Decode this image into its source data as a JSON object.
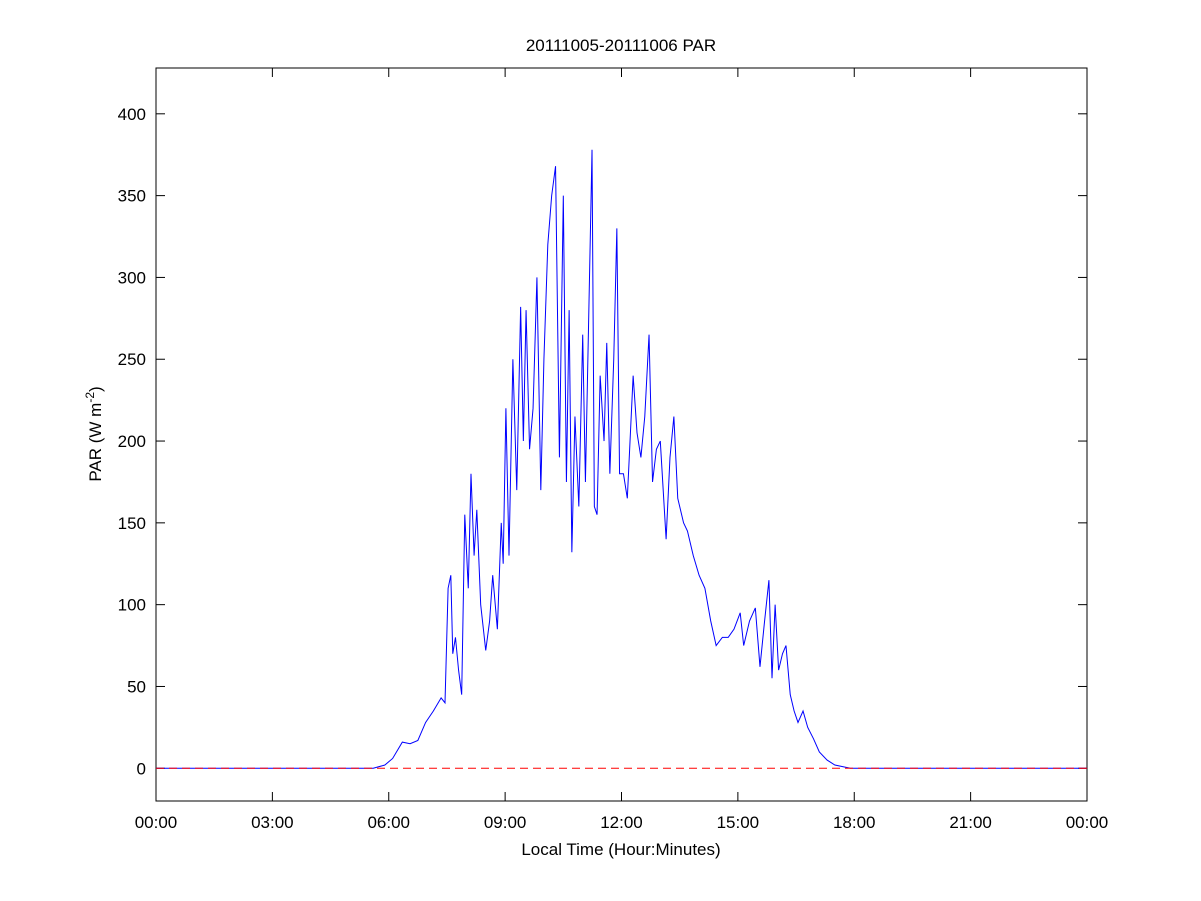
{
  "chart_data": {
    "type": "line",
    "title": "20111005-20111006 PAR",
    "x_label": "Local Time (Hour:Minutes)",
    "y_label": {
      "text": "PAR (W m",
      "superscript": "-2",
      "close": ")"
    },
    "x": [
      0,
      5.6,
      5.9,
      6.1,
      6.35,
      6.55,
      6.75,
      6.95,
      7.15,
      7.35,
      7.45,
      7.53,
      7.6,
      7.65,
      7.72,
      7.8,
      7.88,
      7.96,
      8.05,
      8.12,
      8.2,
      8.27,
      8.37,
      8.5,
      8.6,
      8.68,
      8.8,
      8.9,
      8.95,
      9.02,
      9.1,
      9.2,
      9.3,
      9.4,
      9.47,
      9.54,
      9.63,
      9.72,
      9.82,
      9.92,
      10.0,
      10.1,
      10.2,
      10.3,
      10.4,
      10.5,
      10.58,
      10.65,
      10.72,
      10.8,
      10.9,
      11.0,
      11.07,
      11.15,
      11.24,
      11.3,
      11.37,
      11.45,
      11.55,
      11.62,
      11.7,
      11.8,
      11.88,
      11.95,
      12.05,
      12.15,
      12.3,
      12.4,
      12.5,
      12.6,
      12.71,
      12.8,
      12.9,
      13.0,
      13.15,
      13.25,
      13.35,
      13.45,
      13.6,
      13.7,
      13.85,
      14.0,
      14.15,
      14.3,
      14.44,
      14.6,
      14.75,
      14.9,
      15.06,
      15.15,
      15.3,
      15.45,
      15.57,
      15.68,
      15.8,
      15.88,
      15.96,
      16.05,
      16.15,
      16.24,
      16.35,
      16.45,
      16.55,
      16.68,
      16.8,
      16.95,
      17.1,
      17.3,
      17.5,
      17.9,
      24
    ],
    "series": [
      {
        "color": "#0000ff",
        "values": [
          0,
          0,
          2,
          6,
          16,
          15,
          17,
          28,
          35,
          43,
          40,
          110,
          118,
          70,
          80,
          60,
          45,
          155,
          110,
          180,
          130,
          158,
          100,
          72,
          90,
          118,
          85,
          150,
          125,
          220,
          130,
          250,
          170,
          282,
          200,
          280,
          195,
          220,
          300,
          170,
          250,
          320,
          350,
          368,
          190,
          350,
          175,
          280,
          132,
          215,
          160,
          265,
          175,
          270,
          378,
          160,
          155,
          240,
          200,
          260,
          180,
          250,
          330,
          180,
          180,
          165,
          240,
          205,
          190,
          215,
          265,
          175,
          195,
          200,
          140,
          190,
          215,
          165,
          150,
          145,
          130,
          118,
          110,
          90,
          75,
          80,
          80,
          85,
          95,
          75,
          90,
          98,
          62,
          88,
          115,
          55,
          100,
          60,
          70,
          75,
          45,
          35,
          28,
          35,
          25,
          18,
          10,
          5,
          2,
          0,
          0
        ]
      }
    ],
    "reference_line": {
      "value": 0,
      "color": "#ff0000",
      "style": "dashed"
    },
    "xlim": [
      0,
      24
    ],
    "xticks": [
      {
        "value": 0,
        "label": "00:00"
      },
      {
        "value": 3,
        "label": "03:00"
      },
      {
        "value": 6,
        "label": "06:00"
      },
      {
        "value": 9,
        "label": "09:00"
      },
      {
        "value": 12,
        "label": "12:00"
      },
      {
        "value": 15,
        "label": "15:00"
      },
      {
        "value": 18,
        "label": "18:00"
      },
      {
        "value": 21,
        "label": "21:00"
      },
      {
        "value": 24,
        "label": "00:00"
      }
    ],
    "ylim": [
      -20,
      428
    ],
    "yticks": [
      0,
      50,
      100,
      150,
      200,
      250,
      300,
      350,
      400
    ],
    "grid": false
  }
}
